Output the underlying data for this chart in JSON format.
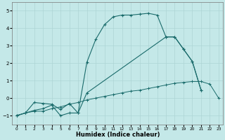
{
  "xlabel": "Humidex (Indice chaleur)",
  "background_color": "#c4e8e8",
  "grid_color": "#aed4d4",
  "line_color": "#1a6b6b",
  "xlim": [
    -0.5,
    23.5
  ],
  "ylim": [
    -1.5,
    5.5
  ],
  "xticks": [
    0,
    1,
    2,
    3,
    4,
    5,
    6,
    7,
    8,
    9,
    10,
    11,
    12,
    13,
    14,
    15,
    16,
    17,
    18,
    19,
    20,
    21,
    22,
    23
  ],
  "yticks": [
    -1,
    0,
    1,
    2,
    3,
    4,
    5
  ],
  "line1_x": [
    0,
    1,
    2,
    3,
    4,
    5,
    6,
    7,
    8,
    9,
    10,
    11,
    12,
    13,
    14,
    15,
    16,
    17,
    18,
    19,
    20,
    21,
    22,
    23
  ],
  "line1_y": [
    -1.0,
    -0.85,
    -0.75,
    -0.75,
    -0.6,
    -0.5,
    -0.35,
    -0.25,
    -0.1,
    0.0,
    0.1,
    0.2,
    0.3,
    0.4,
    0.45,
    0.55,
    0.65,
    0.75,
    0.85,
    0.9,
    0.95,
    0.95,
    0.8,
    0.0
  ],
  "line2_x": [
    0,
    1,
    2,
    3,
    4,
    5,
    6,
    7,
    8,
    9,
    10,
    11,
    12,
    13,
    14,
    15,
    16,
    17,
    18,
    19,
    20,
    21
  ],
  "line2_y": [
    -1.0,
    -0.85,
    -0.7,
    -0.6,
    -0.4,
    -1.0,
    -0.85,
    -0.85,
    2.05,
    3.35,
    4.2,
    4.65,
    4.75,
    4.75,
    4.8,
    4.85,
    4.75,
    3.5,
    3.5,
    2.8,
    2.1,
    0.45
  ],
  "line3_x": [
    0,
    1,
    2,
    3,
    4,
    5,
    6,
    7,
    8,
    17,
    18,
    19,
    20,
    21
  ],
  "line3_y": [
    -1.0,
    -0.85,
    -0.25,
    -0.3,
    -0.35,
    -0.65,
    -0.3,
    -0.85,
    0.3,
    3.5,
    3.5,
    2.8,
    2.1,
    0.45
  ]
}
